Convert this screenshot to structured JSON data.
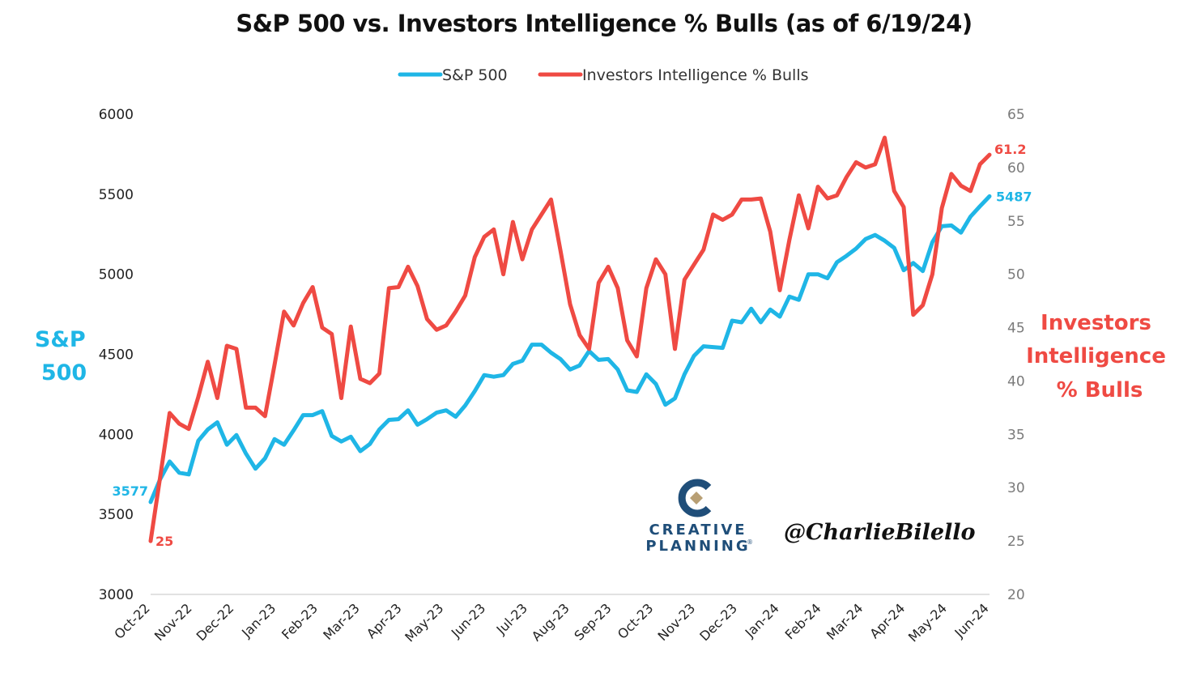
{
  "chart_data": {
    "type": "line",
    "title": "S&P 500 vs. Investors Intelligence % Bulls (as of 6/19/24)",
    "y_left_label": "S&P 500",
    "y_right_label": "Investors Intelligence % Bulls",
    "y_left_lim": [
      3000,
      6000
    ],
    "y_right_lim": [
      20,
      65
    ],
    "y_left_ticks": [
      "3000",
      "3500",
      "4000",
      "4500",
      "5000",
      "5500",
      "6000"
    ],
    "y_right_ticks": [
      "20",
      "25",
      "30",
      "35",
      "40",
      "45",
      "50",
      "55",
      "60",
      "65"
    ],
    "x_tick_labels": [
      "Oct-22",
      "Nov-22",
      "Dec-22",
      "Jan-23",
      "Feb-23",
      "Mar-23",
      "Apr-23",
      "May-23",
      "Jun-23",
      "Jul-23",
      "Aug-23",
      "Sep-23",
      "Oct-23",
      "Nov-23",
      "Dec-23",
      "Jan-24",
      "Feb-24",
      "Mar-24",
      "Apr-24",
      "May-24",
      "Jun-24"
    ],
    "grid": false,
    "legend_position": "top-center",
    "series": [
      {
        "name": "S&P 500",
        "axis": "left",
        "color": "#1fb6e6",
        "end_labels": [
          "3577",
          "5487"
        ],
        "values": [
          3577,
          3720,
          3830,
          3760,
          3750,
          3960,
          4030,
          4075,
          3935,
          3995,
          3880,
          3785,
          3850,
          3970,
          3935,
          4025,
          4120,
          4120,
          4145,
          3990,
          3955,
          3985,
          3895,
          3940,
          4030,
          4090,
          4095,
          4150,
          4060,
          4095,
          4135,
          4150,
          4110,
          4180,
          4270,
          4370,
          4360,
          4370,
          4440,
          4460,
          4560,
          4560,
          4510,
          4470,
          4405,
          4430,
          4520,
          4465,
          4470,
          4405,
          4275,
          4265,
          4375,
          4315,
          4185,
          4225,
          4375,
          4490,
          4550,
          4545,
          4540,
          4710,
          4700,
          4785,
          4700,
          4780,
          4735,
          4860,
          4840,
          5000,
          5000,
          4975,
          5075,
          5115,
          5160,
          5220,
          5245,
          5210,
          5165,
          5025,
          5070,
          5020,
          5200,
          5300,
          5305,
          5260,
          5360,
          5425,
          5487
        ]
      },
      {
        "name": "Investors Intelligence % Bulls",
        "axis": "right",
        "color": "#ef4a43",
        "end_labels": [
          "25",
          "61.2"
        ],
        "values": [
          25,
          31,
          37,
          36,
          35.5,
          38.5,
          41.8,
          38.4,
          43.3,
          43,
          37.5,
          37.5,
          36.7,
          41.5,
          46.5,
          45.2,
          47.3,
          48.8,
          45,
          44.4,
          38.4,
          45.1,
          40.2,
          39.8,
          40.7,
          48.7,
          48.8,
          50.7,
          48.9,
          45.8,
          44.8,
          45.2,
          46.5,
          48,
          51.6,
          53.5,
          54.2,
          50,
          54.9,
          51.4,
          54.2,
          55.6,
          57,
          52.2,
          47.2,
          44.3,
          43,
          49.2,
          50.7,
          48.7,
          43.8,
          42.3,
          48.7,
          51.4,
          50,
          43,
          49.5,
          50.9,
          52.3,
          55.6,
          55.1,
          55.6,
          57,
          57,
          57.1,
          54,
          48.5,
          53.2,
          57.4,
          54.3,
          58.2,
          57.1,
          57.4,
          59.1,
          60.5,
          60,
          60.3,
          62.8,
          57.8,
          56.3,
          46.2,
          47.1,
          50,
          56.2,
          59.4,
          58.3,
          57.8,
          60.3,
          61.2
        ]
      }
    ]
  },
  "branding": {
    "logo_line1": "CREATIVE",
    "logo_line2": "PLANNING",
    "logo_mark": "®",
    "handle": "@CharlieBilello",
    "icon": "creative-planning-logo-icon"
  }
}
